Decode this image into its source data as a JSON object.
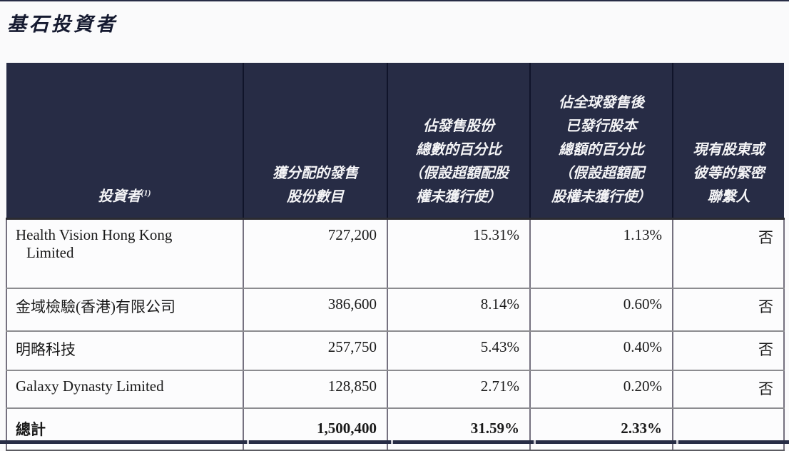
{
  "page": {
    "title": "基石投資者",
    "colors": {
      "header_navy": "#272c45",
      "body_border": "#75717f",
      "row_border": "#8c8c90",
      "background": "#fafafb"
    }
  },
  "table": {
    "header": {
      "investor": {
        "label": "投資者",
        "superscript": "(1)"
      },
      "shares": {
        "line1": "獲分配的發售",
        "line2": "股份數目"
      },
      "pct_offer": {
        "line1": "佔發售股份",
        "line2": "總數的百分比",
        "line3": "（假設超額配股",
        "line4": "權未獲行使）"
      },
      "pct_capital": {
        "line1": "佔全球發售後",
        "line2": "已發行股本",
        "line3": "總額的百分比",
        "line4": "（假設超額配",
        "line5": "股權未獲行使）"
      },
      "existing": {
        "line1": "現有股東或",
        "line2": "彼等的緊密",
        "line3": "聯繫人"
      }
    },
    "rows": [
      {
        "investor_line1": "Health Vision Hong Kong",
        "investor_line2": "Limited",
        "shares": "727,200",
        "pct_offer": "15.31%",
        "pct_capital": "1.13%",
        "existing": "否"
      },
      {
        "investor_line1": "金域檢驗(香港)有限公司",
        "shares": "386,600",
        "pct_offer": "8.14%",
        "pct_capital": "0.60%",
        "existing": "否"
      },
      {
        "investor_line1": "明略科技",
        "shares": "257,750",
        "pct_offer": "5.43%",
        "pct_capital": "0.40%",
        "existing": "否"
      },
      {
        "investor_line1": "Galaxy Dynasty Limited",
        "shares": "128,850",
        "pct_offer": "2.71%",
        "pct_capital": "0.20%",
        "existing": "否"
      }
    ],
    "total": {
      "label": "總計",
      "shares": "1,500,400",
      "pct_offer": "31.59%",
      "pct_capital": "2.33%",
      "existing": ""
    }
  }
}
